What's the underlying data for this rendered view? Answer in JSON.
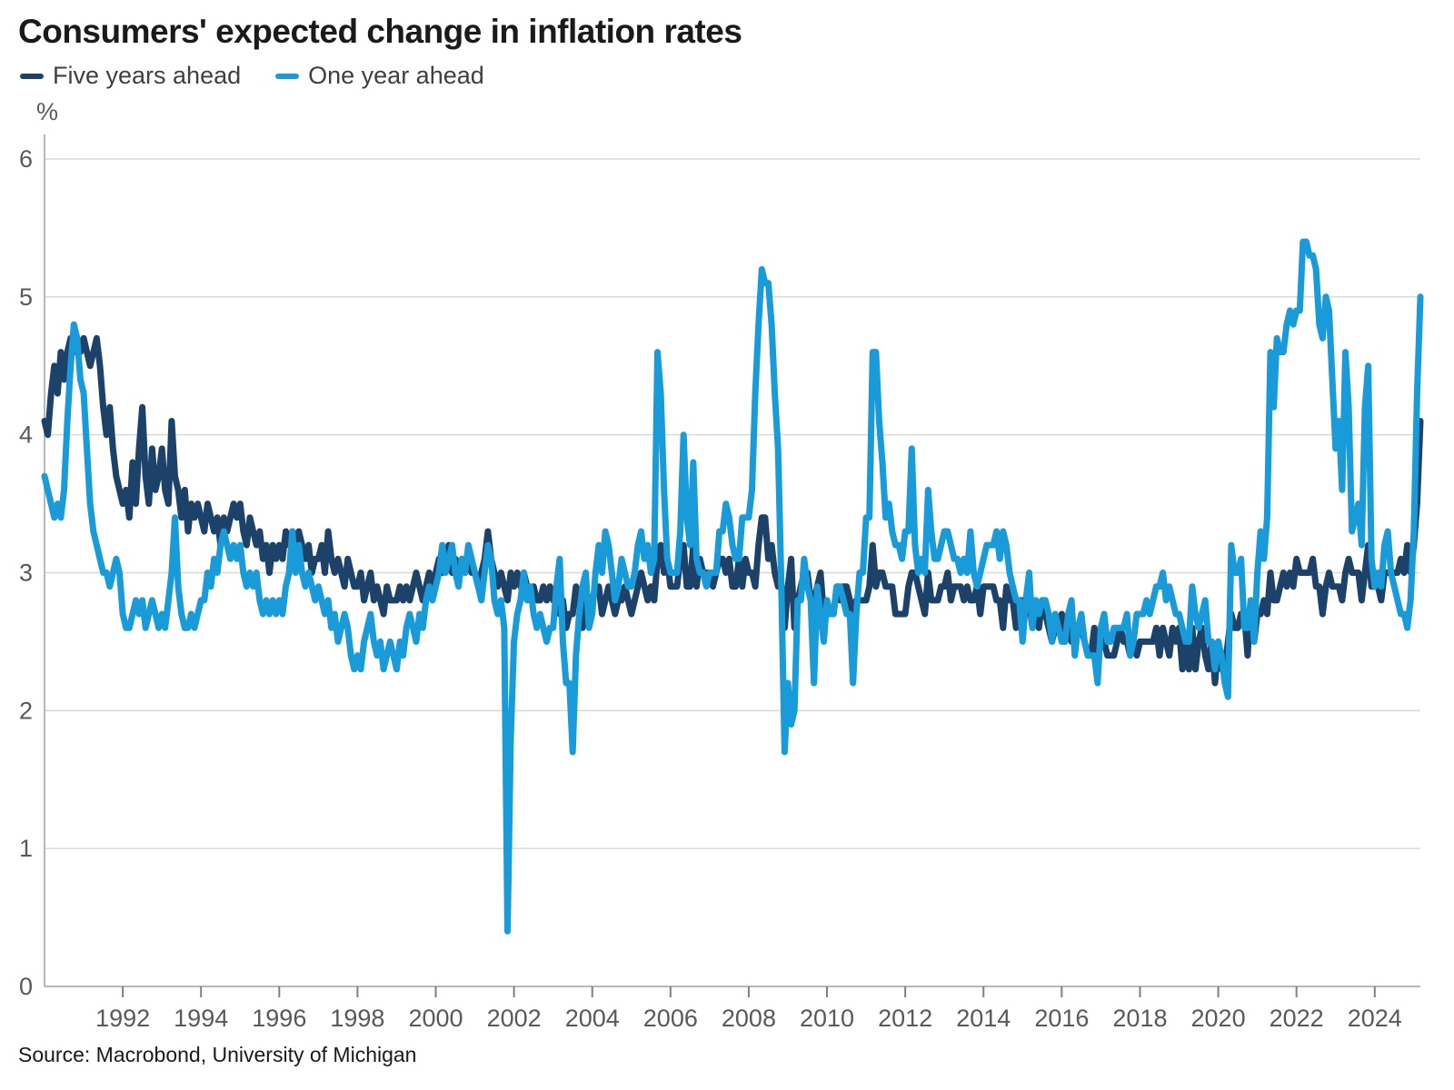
{
  "title": "Consumers' expected change in inflation rates",
  "source": "Source: Macrobond, University of Michigan",
  "legend": [
    {
      "label": "Five years ahead",
      "color": "#1C4269"
    },
    {
      "label": "One year ahead",
      "color": "#189BD8"
    }
  ],
  "colors": {
    "five_years": "#1C4269",
    "one_year": "#189BD8",
    "gridline": "#d9d9d9",
    "axis_line": "#b7b7b7",
    "tick_mark": "#7f7f7f",
    "tick_text": "#595959",
    "title_text": "#1a1a1a"
  },
  "chart_data": {
    "type": "line",
    "title": "Consumers' expected change in inflation rates",
    "xlabel": "",
    "ylabel": "%",
    "ylim": [
      0,
      6
    ],
    "y_ticks": [
      0,
      1,
      2,
      3,
      4,
      5,
      6
    ],
    "x_ticks": [
      1992,
      1994,
      1996,
      1998,
      2000,
      2002,
      2004,
      2006,
      2008,
      2010,
      2012,
      2014,
      2016,
      2018,
      2020,
      2022,
      2024
    ],
    "grid": "horizontal",
    "legend_position": "top-left",
    "frequency": "monthly",
    "start_year": 1990,
    "start_month": 1,
    "end_year": 2025,
    "end_month": 3,
    "series": [
      {
        "name": "Five years ahead",
        "color": "#1C4269",
        "values": [
          4.1,
          4.0,
          4.3,
          4.5,
          4.3,
          4.6,
          4.4,
          4.6,
          4.7,
          4.6,
          4.7,
          4.6,
          4.7,
          4.6,
          4.5,
          4.6,
          4.7,
          4.5,
          4.2,
          4.0,
          4.2,
          3.9,
          3.7,
          3.6,
          3.5,
          3.6,
          3.4,
          3.8,
          3.5,
          3.9,
          4.2,
          3.7,
          3.5,
          3.9,
          3.6,
          3.7,
          3.9,
          3.6,
          3.5,
          4.1,
          3.7,
          3.6,
          3.4,
          3.6,
          3.3,
          3.5,
          3.4,
          3.5,
          3.4,
          3.3,
          3.5,
          3.4,
          3.3,
          3.4,
          3.2,
          3.4,
          3.3,
          3.4,
          3.5,
          3.4,
          3.5,
          3.3,
          3.2,
          3.4,
          3.3,
          3.2,
          3.3,
          3.1,
          3.2,
          3.0,
          3.2,
          3.1,
          3.2,
          3.1,
          3.3,
          3.2,
          3.3,
          3.1,
          3.3,
          3.2,
          3.1,
          3.2,
          3.0,
          3.1,
          3.1,
          3.2,
          3.0,
          3.3,
          3.1,
          3.0,
          3.1,
          3.0,
          2.9,
          3.1,
          3.0,
          2.9,
          2.9,
          3.0,
          2.8,
          2.9,
          3.0,
          2.8,
          2.9,
          2.8,
          2.7,
          2.9,
          2.8,
          2.8,
          2.8,
          2.9,
          2.8,
          2.9,
          2.8,
          2.9,
          3.0,
          2.9,
          2.8,
          2.9,
          3.0,
          2.9,
          3.0,
          3.1,
          3.0,
          3.1,
          3.2,
          3.0,
          3.1,
          3.0,
          3.1,
          3.0,
          3.1,
          3.0,
          3.0,
          2.9,
          3.0,
          3.1,
          3.3,
          3.1,
          3.0,
          2.9,
          3.0,
          2.9,
          2.8,
          3.0,
          2.9,
          3.0,
          2.9,
          3.0,
          2.9,
          2.8,
          2.9,
          2.8,
          2.8,
          2.9,
          2.8,
          2.9,
          2.8,
          2.9,
          2.7,
          2.8,
          2.6,
          2.7,
          2.7,
          2.9,
          2.8,
          2.6,
          2.8,
          2.7,
          2.8,
          2.9,
          2.9,
          2.7,
          2.8,
          2.9,
          2.8,
          2.7,
          2.8,
          2.8,
          2.9,
          2.8,
          2.7,
          2.8,
          2.9,
          3.0,
          2.9,
          2.8,
          2.9,
          2.8,
          3.1,
          3.2,
          3.0,
          3.1,
          2.9,
          2.9,
          2.9,
          3.1,
          3.2,
          2.9,
          2.9,
          3.2,
          2.9,
          3.1,
          3.0,
          3.0,
          3.0,
          2.9,
          3.0,
          3.1,
          3.1,
          3.0,
          3.1,
          2.9,
          2.9,
          3.1,
          2.9,
          3.1,
          3.0,
          3.0,
          2.9,
          3.2,
          3.4,
          3.4,
          3.1,
          3.2,
          3.0,
          2.9,
          2.9,
          2.6,
          2.9,
          3.1,
          2.6,
          2.8,
          2.9,
          3.0,
          3.0,
          2.8,
          2.8,
          2.9,
          3.0,
          2.7,
          2.8,
          2.7,
          2.7,
          2.9,
          2.8,
          2.9,
          2.9,
          2.8,
          2.7,
          2.8,
          2.8,
          2.8,
          2.8,
          2.9,
          3.2,
          2.9,
          3.0,
          3.0,
          2.9,
          2.9,
          2.9,
          2.7,
          2.7,
          2.7,
          2.7,
          2.9,
          3.0,
          3.0,
          2.9,
          2.8,
          2.7,
          3.0,
          2.8,
          2.8,
          2.8,
          2.9,
          2.9,
          3.0,
          2.8,
          2.9,
          2.9,
          2.9,
          2.8,
          2.9,
          2.8,
          2.8,
          2.9,
          2.7,
          2.9,
          2.9,
          2.9,
          2.9,
          2.8,
          2.8,
          2.6,
          2.9,
          2.8,
          2.8,
          2.6,
          2.8,
          2.8,
          2.7,
          2.8,
          2.6,
          2.8,
          2.6,
          2.8,
          2.7,
          2.6,
          2.5,
          2.6,
          2.6,
          2.7,
          2.5,
          2.7,
          2.5,
          2.5,
          2.6,
          2.6,
          2.5,
          2.4,
          2.4,
          2.6,
          2.3,
          2.6,
          2.5,
          2.4,
          2.4,
          2.4,
          2.5,
          2.6,
          2.5,
          2.5,
          2.4,
          2.5,
          2.4,
          2.5,
          2.5,
          2.5,
          2.5,
          2.5,
          2.6,
          2.4,
          2.6,
          2.5,
          2.4,
          2.6,
          2.5,
          2.6,
          2.3,
          2.5,
          2.3,
          2.6,
          2.3,
          2.5,
          2.6,
          2.4,
          2.3,
          2.5,
          2.2,
          2.5,
          2.3,
          2.3,
          2.5,
          2.7,
          2.6,
          2.6,
          2.7,
          2.7,
          2.4,
          2.8,
          2.5,
          2.7,
          2.7,
          2.8,
          2.7,
          3.0,
          2.8,
          2.8,
          2.9,
          3.0,
          2.9,
          3.0,
          2.9,
          3.1,
          3.0,
          3.0,
          3.0,
          3.0,
          3.1,
          2.9,
          2.9,
          2.7,
          2.9,
          3.0,
          2.9,
          2.9,
          2.9,
          2.8,
          3.0,
          3.1,
          3.0,
          3.0,
          3.0,
          2.8,
          3.0,
          3.2,
          2.9,
          2.9,
          2.9,
          2.8,
          3.0,
          3.0,
          3.0,
          3.0,
          3.0,
          3.1,
          3.0,
          3.2,
          3.0,
          3.2,
          3.5,
          4.1
        ]
      },
      {
        "name": "One year ahead",
        "color": "#189BD8",
        "values": [
          3.7,
          3.6,
          3.5,
          3.4,
          3.5,
          3.4,
          3.6,
          4.1,
          4.5,
          4.8,
          4.7,
          4.4,
          4.3,
          3.9,
          3.5,
          3.3,
          3.2,
          3.1,
          3.0,
          3.0,
          2.9,
          3.0,
          3.1,
          3.0,
          2.7,
          2.6,
          2.6,
          2.7,
          2.8,
          2.7,
          2.8,
          2.6,
          2.7,
          2.8,
          2.7,
          2.6,
          2.7,
          2.6,
          2.8,
          3.0,
          3.4,
          2.9,
          2.7,
          2.6,
          2.6,
          2.7,
          2.6,
          2.7,
          2.8,
          2.8,
          3.0,
          2.9,
          3.1,
          3.0,
          3.2,
          3.3,
          3.2,
          3.1,
          3.2,
          3.1,
          3.2,
          3.0,
          2.9,
          3.0,
          2.9,
          3.0,
          2.8,
          2.7,
          2.8,
          2.7,
          2.8,
          2.7,
          2.8,
          2.7,
          2.9,
          3.0,
          3.3,
          3.0,
          3.2,
          3.0,
          2.9,
          3.0,
          2.9,
          2.8,
          2.9,
          2.8,
          2.7,
          2.8,
          2.6,
          2.7,
          2.5,
          2.6,
          2.7,
          2.6,
          2.4,
          2.3,
          2.4,
          2.3,
          2.5,
          2.6,
          2.7,
          2.5,
          2.4,
          2.5,
          2.3,
          2.4,
          2.5,
          2.4,
          2.3,
          2.5,
          2.4,
          2.6,
          2.7,
          2.6,
          2.5,
          2.7,
          2.6,
          2.8,
          2.9,
          2.8,
          2.9,
          3.0,
          3.2,
          3.0,
          3.1,
          3.2,
          3.0,
          2.9,
          3.1,
          3.0,
          3.2,
          3.1,
          3.0,
          2.9,
          2.8,
          3.0,
          3.2,
          3.1,
          2.8,
          2.7,
          2.8,
          2.6,
          0.4,
          1.8,
          2.5,
          2.7,
          2.8,
          3.0,
          2.8,
          2.9,
          2.7,
          2.6,
          2.7,
          2.6,
          2.5,
          2.6,
          2.6,
          2.9,
          3.1,
          2.5,
          2.2,
          2.2,
          1.7,
          2.4,
          2.7,
          2.9,
          3.0,
          2.6,
          2.7,
          3.0,
          3.2,
          3.0,
          3.3,
          3.2,
          3.0,
          2.8,
          2.9,
          3.1,
          3.0,
          2.9,
          2.9,
          3.0,
          3.2,
          3.3,
          3.1,
          3.2,
          3.0,
          3.1,
          4.6,
          4.3,
          3.6,
          3.1,
          3.0,
          3.0,
          3.0,
          3.3,
          4.0,
          3.4,
          3.2,
          3.8,
          3.1,
          3.0,
          3.0,
          2.9,
          3.0,
          3.0,
          3.0,
          3.3,
          3.3,
          3.5,
          3.4,
          3.2,
          3.1,
          3.1,
          3.4,
          3.4,
          3.4,
          3.6,
          4.3,
          4.8,
          5.2,
          5.1,
          5.1,
          4.8,
          4.3,
          3.9,
          2.9,
          1.7,
          2.2,
          1.9,
          2.0,
          2.8,
          2.8,
          3.1,
          2.9,
          2.8,
          2.2,
          2.9,
          2.7,
          2.5,
          2.8,
          2.7,
          2.7,
          2.9,
          2.9,
          2.8,
          2.7,
          2.7,
          2.2,
          2.7,
          3.0,
          3.0,
          3.4,
          3.4,
          4.6,
          4.6,
          4.1,
          3.8,
          3.4,
          3.5,
          3.3,
          3.2,
          3.2,
          3.1,
          3.3,
          3.3,
          3.9,
          3.2,
          3.0,
          3.1,
          3.0,
          3.6,
          3.3,
          3.1,
          3.1,
          3.2,
          3.3,
          3.3,
          3.2,
          3.1,
          3.1,
          3.0,
          3.1,
          3.0,
          3.3,
          3.0,
          2.9,
          3.0,
          3.1,
          3.2,
          3.2,
          3.2,
          3.3,
          3.1,
          3.3,
          3.2,
          3.0,
          2.9,
          2.8,
          2.8,
          2.5,
          2.8,
          3.0,
          2.6,
          2.8,
          2.7,
          2.8,
          2.8,
          2.7,
          2.5,
          2.7,
          2.6,
          2.5,
          2.5,
          2.7,
          2.8,
          2.4,
          2.6,
          2.7,
          2.5,
          2.4,
          2.4,
          2.4,
          2.2,
          2.6,
          2.7,
          2.5,
          2.5,
          2.6,
          2.6,
          2.6,
          2.6,
          2.7,
          2.4,
          2.5,
          2.7,
          2.7,
          2.7,
          2.8,
          2.7,
          2.8,
          2.9,
          2.9,
          3.0,
          2.8,
          2.9,
          2.8,
          2.7,
          2.7,
          2.6,
          2.5,
          2.5,
          2.9,
          2.7,
          2.6,
          2.7,
          2.8,
          2.5,
          2.5,
          2.3,
          2.5,
          2.4,
          2.2,
          2.1,
          3.2,
          3.0,
          3.0,
          3.1,
          2.6,
          2.6,
          2.8,
          2.5,
          3.0,
          3.3,
          3.1,
          3.4,
          4.6,
          4.2,
          4.7,
          4.6,
          4.6,
          4.8,
          4.9,
          4.8,
          4.9,
          4.9,
          5.4,
          5.4,
          5.3,
          5.3,
          5.2,
          4.8,
          4.7,
          5.0,
          4.9,
          4.4,
          3.9,
          4.1,
          3.6,
          4.6,
          4.2,
          3.3,
          3.4,
          3.5,
          3.2,
          4.2,
          4.5,
          3.1,
          2.9,
          3.0,
          2.9,
          3.2,
          3.3,
          3.0,
          2.9,
          2.8,
          2.7,
          2.7,
          2.6,
          2.8,
          3.3,
          4.3,
          5.0
        ]
      }
    ]
  }
}
